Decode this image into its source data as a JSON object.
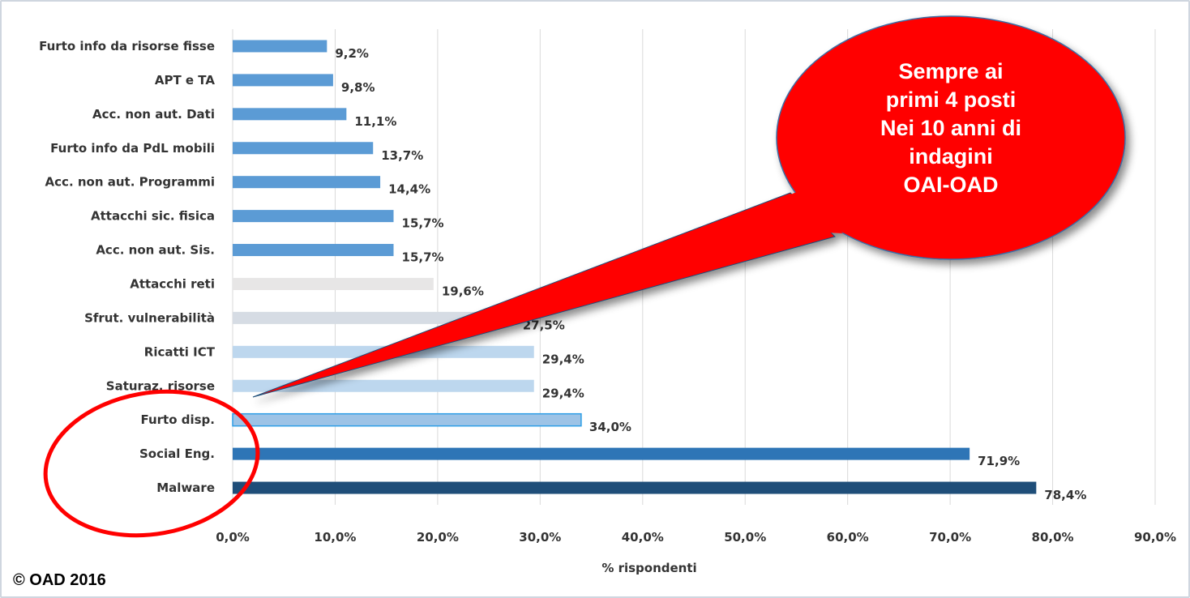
{
  "chart_data": {
    "type": "bar",
    "orientation": "horizontal",
    "categories": [
      "Furto info da risorse fisse",
      "APT e TA",
      "Acc. non aut. Dati",
      "Furto info da PdL mobili",
      "Acc. non aut. Programmi",
      "Attacchi sic. fisica",
      "Acc. non aut. Sis.",
      "Attacchi reti",
      "Sfrut. vulnerabilità",
      "Ricatti ICT",
      "Saturaz. risorse",
      "Furto disp.",
      "Social Eng.",
      "Malware"
    ],
    "values": [
      9.2,
      9.8,
      11.1,
      13.7,
      14.4,
      15.7,
      15.7,
      19.6,
      27.5,
      29.4,
      29.4,
      34.0,
      71.9,
      78.4
    ],
    "value_labels": [
      "9,2%",
      "9,8%",
      "11,1%",
      "13,7%",
      "14,4%",
      "15,7%",
      "15,7%",
      "19,6%",
      "27,5%",
      "29,4%",
      "29,4%",
      "34,0%",
      "71,9%",
      "78,4%"
    ],
    "bar_colors": [
      "#5b9bd5",
      "#5b9bd5",
      "#5b9bd5",
      "#5b9bd5",
      "#5b9bd5",
      "#5b9bd5",
      "#5b9bd5",
      "#e7e6e6",
      "#d6dce4",
      "#bdd7ee",
      "#bdd7ee",
      "#9dc3e6",
      "#2e75b6",
      "#1f4e79"
    ],
    "xlim": [
      0,
      90
    ],
    "xticks": [
      0,
      10,
      20,
      30,
      40,
      50,
      60,
      70,
      80,
      90
    ],
    "xtick_labels": [
      "0,0%",
      "10,0%",
      "20,0%",
      "30,0%",
      "40,0%",
      "50,0%",
      "60,0%",
      "70,0%",
      "80,0%",
      "90,0%"
    ],
    "xlabel": "% rispondenti",
    "ylabel": "",
    "title": "",
    "grid": true,
    "annotation": {
      "text_lines": [
        "Sempre ai",
        "primi 4 posti",
        "Nei 10 anni di",
        "indagini",
        "OAI-OAD"
      ],
      "shape": "red oval callout",
      "color": "#ff0000"
    },
    "highlight": {
      "shape": "red ellipse outline",
      "color": "#ff0000",
      "covers": [
        "Saturaz. risorse",
        "Furto disp.",
        "Social Eng.",
        "Malware"
      ]
    }
  },
  "footer": {
    "copyright": "© OAD  2016"
  }
}
